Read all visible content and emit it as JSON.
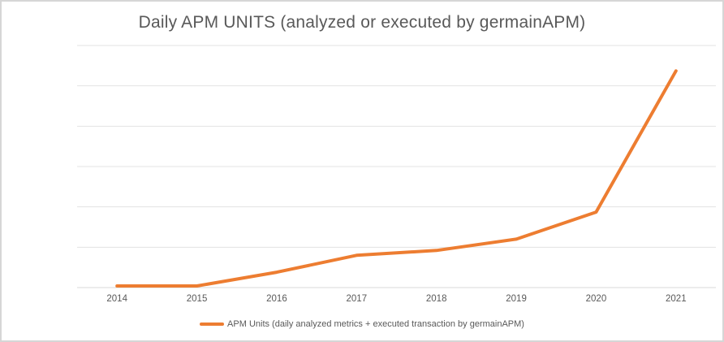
{
  "window": {
    "background": "#ffffff",
    "border_color": "#d6d6d6"
  },
  "chart_data": {
    "type": "line",
    "title": "Daily APM UNITS (analyzed or executed by germainAPM)",
    "categories": [
      "2014",
      "2015",
      "2016",
      "2017",
      "2018",
      "2019",
      "2020",
      "2021"
    ],
    "series": [
      {
        "name": "APM Units (daily analyzed metrics + executed transaction by germainAPM)",
        "color": "#ED7D31",
        "values": [
          0.04,
          0.04,
          0.38,
          0.8,
          0.92,
          1.2,
          1.87,
          5.37
        ]
      }
    ],
    "xlabel": "",
    "ylabel": "",
    "ylim": [
      0,
      6
    ],
    "y_gridline_step": 1,
    "y_axis_labels_visible": false,
    "grid": "horizontal",
    "legend_position": "bottom-center",
    "colors": {
      "title_text": "#595959",
      "tick_text": "#595959",
      "gridline": "#e3e3e3",
      "axis_line": "#d9d9d9",
      "series_orange": "#ED7D31"
    }
  }
}
